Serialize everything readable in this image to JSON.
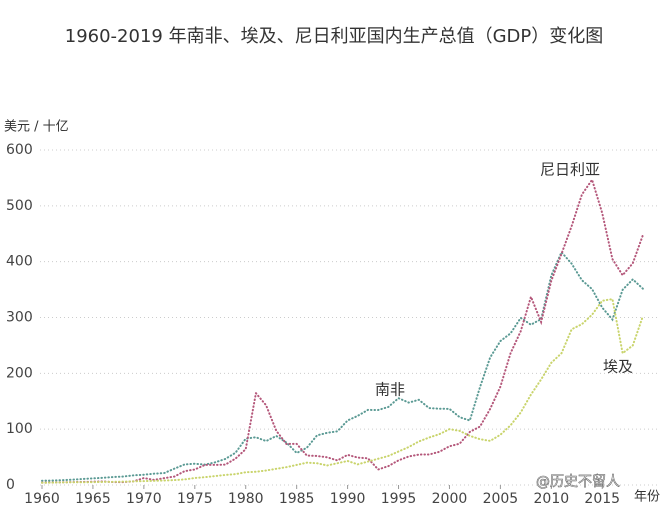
{
  "chart_data": {
    "type": "line",
    "title": "1960-2019 年南非、埃及、尼日利亚国内生产总值（GDP）变化图",
    "y_label": "美元 / 十亿",
    "x_label": "年份",
    "watermark": "@历史不留人",
    "x": [
      1960,
      1961,
      1962,
      1963,
      1964,
      1965,
      1966,
      1967,
      1968,
      1969,
      1970,
      1971,
      1972,
      1973,
      1974,
      1975,
      1976,
      1977,
      1978,
      1979,
      1980,
      1981,
      1982,
      1983,
      1984,
      1985,
      1986,
      1987,
      1988,
      1989,
      1990,
      1991,
      1992,
      1993,
      1994,
      1995,
      1996,
      1997,
      1998,
      1999,
      2000,
      2001,
      2002,
      2003,
      2004,
      2005,
      2006,
      2007,
      2008,
      2009,
      2010,
      2011,
      2012,
      2013,
      2014,
      2015,
      2016,
      2017,
      2018,
      2019
    ],
    "series": [
      {
        "name": "南非",
        "color": "#5b9a94",
        "values": [
          7.6,
          8,
          8.7,
          9.6,
          10.8,
          11.9,
          12.9,
          14.3,
          15.2,
          17.3,
          18.4,
          20.3,
          21.4,
          29.3,
          36.8,
          38.1,
          36.6,
          40.6,
          46.7,
          57.8,
          83,
          85.5,
          78.7,
          87.8,
          76,
          57.3,
          66.7,
          88.9,
          93.5,
          96.1,
          115.6,
          123.9,
          134.5,
          134.3,
          139.8,
          155.5,
          147.6,
          152.6,
          137.8,
          136.6,
          136.4,
          121.5,
          115.5,
          175.3,
          228.6,
          257.8,
          271.6,
          299.4,
          287.1,
          297.2,
          375.3,
          416.9,
          396.3,
          366.8,
          350.9,
          317.6,
          296.4,
          349.6,
          368.3,
          351.4
        ]
      },
      {
        "name": "尼日利亚",
        "color": "#b4577a",
        "values": [
          4.2,
          4.5,
          4.9,
          5.2,
          5.5,
          5.9,
          6.4,
          5.2,
          5.2,
          6.6,
          12.5,
          9.2,
          12.3,
          15.2,
          24.8,
          27.8,
          36,
          36,
          36.5,
          47.3,
          64.2,
          164.5,
          142.8,
          97.1,
          73.5,
          73.7,
          52.7,
          52,
          49.6,
          44,
          54,
          49.1,
          47.8,
          27.8,
          33.8,
          44.1,
          51.1,
          54.5,
          54.6,
          59.4,
          69.4,
          74,
          95.1,
          104.7,
          136.4,
          176.1,
          236.1,
          275.6,
          337,
          291.9,
          366,
          414,
          463.9,
          520.1,
          546.7,
          486.8,
          404.6,
          375.7,
          397.2,
          448.1
        ]
      },
      {
        "name": "埃及",
        "color": "#c9d46c",
        "values": [
          4,
          4.3,
          4.6,
          5,
          4.8,
          5.1,
          5.5,
          5.7,
          6,
          6.5,
          7,
          7.5,
          8.1,
          8.8,
          10,
          12.6,
          14,
          16,
          18,
          19.5,
          22.9,
          23.7,
          26,
          29,
          32,
          36,
          40,
          39,
          35,
          39,
          43,
          37,
          42,
          47,
          52,
          60,
          68,
          78,
          85,
          91,
          100,
          97,
          88,
          82,
          79,
          90,
          107,
          130,
          162,
          189,
          219,
          236,
          279,
          288,
          305,
          330,
          333,
          236,
          250,
          303
        ]
      }
    ],
    "xlim": [
      1960,
      2019
    ],
    "xticks": [
      1960,
      1965,
      1970,
      1975,
      1980,
      1985,
      1990,
      1995,
      2000,
      2005,
      2010,
      2015
    ],
    "ylim": [
      0,
      600
    ],
    "yticks": [
      0,
      100,
      200,
      300,
      400,
      500,
      600
    ],
    "grid": true
  }
}
